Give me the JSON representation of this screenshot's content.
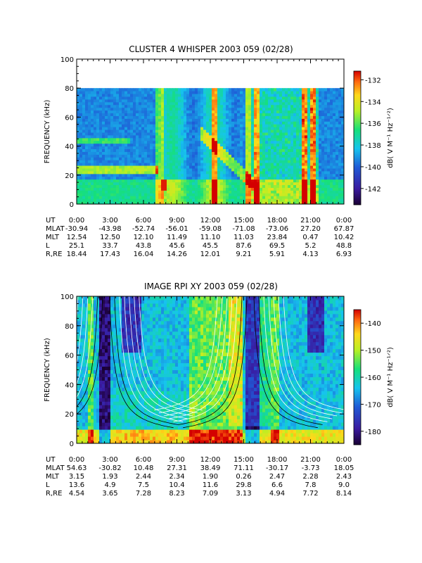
{
  "chart_data": [
    {
      "type": "heatmap",
      "title": "CLUSTER 4 WHISPER 2003 059 (02/28)",
      "ylabel": "FREQUENCY (kHz)",
      "ylim": [
        0,
        100
      ],
      "yticks": [
        "0",
        "20",
        "40",
        "60",
        "80",
        "100"
      ],
      "xticks": [
        "0:00",
        "3:00",
        "6:00",
        "9:00",
        "12:00",
        "15:00",
        "18:00",
        "21:00",
        "0:00"
      ],
      "data_max_freq_khz": 80,
      "colorbar": {
        "label": "dB( V M⁻¹ Hz⁻¹ᐟ²)",
        "ticks": [
          "-132",
          "-134",
          "-136",
          "-138",
          "-140",
          "-142"
        ],
        "range": [
          -143.5,
          -131.2
        ]
      },
      "ephemeris": {
        "labels": [
          "UT",
          "MLAT",
          "MLT",
          "L",
          "R,RE"
        ],
        "UT": [
          "0:00",
          "3:00",
          "6:00",
          "9:00",
          "12:00",
          "15:00",
          "18:00",
          "21:00",
          "0:00"
        ],
        "MLAT": [
          "-30.94",
          "-43.98",
          "-52.74",
          "-56.01",
          "-59.08",
          "-71.08",
          "-73.06",
          "27.20",
          "67.87"
        ],
        "MLT": [
          "12.54",
          "12.50",
          "12.10",
          "11.49",
          "11.10",
          "11.03",
          "23.84",
          "0.47",
          "10.42"
        ],
        "L": [
          "25.1",
          "33.7",
          "43.8",
          "45.6",
          "45.5",
          "87.6",
          "69.5",
          "5.2",
          "48.8"
        ],
        "R,RE": [
          "18.44",
          "17.43",
          "16.04",
          "14.26",
          "12.01",
          "9.21",
          "5.91",
          "4.13",
          "6.93"
        ]
      }
    },
    {
      "type": "heatmap",
      "title": "IMAGE RPI XY 2003 059 (02/28)",
      "ylabel": "FREQUENCY (kHz)",
      "ylim": [
        0,
        100
      ],
      "yticks": [
        "0",
        "20",
        "40",
        "60",
        "80",
        "100"
      ],
      "xticks": [
        "0:00",
        "3:00",
        "6:00",
        "9:00",
        "12:00",
        "15:00",
        "18:00",
        "21:00",
        "0:00"
      ],
      "colorbar": {
        "label": "dB( V M⁻¹ Hz⁻¹ᐟ²)",
        "ticks": [
          "-140",
          "-150",
          "-160",
          "-170",
          "-180"
        ],
        "range": [
          -185,
          -135
        ]
      },
      "ephemeris": {
        "labels": [
          "UT",
          "MLAT",
          "MLT",
          "L",
          "R,RE"
        ],
        "UT": [
          "0:00",
          "3:00",
          "6:00",
          "9:00",
          "12:00",
          "15:00",
          "18:00",
          "21:00",
          "0:00"
        ],
        "MLAT": [
          "54.63",
          "-30.82",
          "10.48",
          "27.31",
          "38.49",
          "71.11",
          "-30.17",
          "-3.73",
          "18.05"
        ],
        "MLT": [
          "3.15",
          "1.93",
          "2.44",
          "2.34",
          "1.90",
          "0.26",
          "2.47",
          "2.28",
          "2.43"
        ],
        "L": [
          "13.6",
          "4.9",
          "7.5",
          "10.4",
          "11.6",
          "29.8",
          "6.6",
          "7.8",
          "9.0"
        ],
        "R,RE": [
          "4.54",
          "3.65",
          "7.28",
          "8.23",
          "7.09",
          "3.13",
          "4.94",
          "7.72",
          "8.14"
        ]
      }
    }
  ]
}
